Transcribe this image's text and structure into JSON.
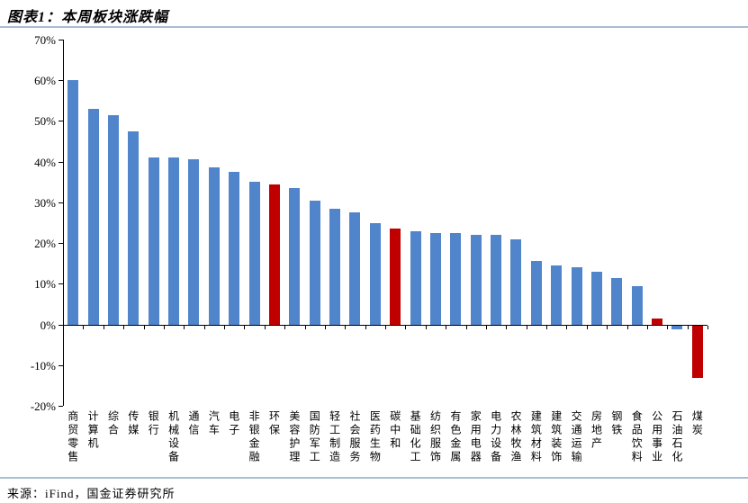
{
  "page": {
    "title": "图表1：本周板块涨跌幅",
    "source": "来源：iFind，国金证券研究所"
  },
  "chart_data": {
    "type": "bar",
    "title": "图表1：本周板块涨跌幅",
    "categories": [
      "商贸零售",
      "计算机",
      "综合",
      "传媒",
      "银行",
      "机械设备",
      "通信",
      "汽车",
      "电子",
      "非银金融",
      "环保",
      "美容护理",
      "国防军工",
      "轻工制造",
      "社会服务",
      "医药生物",
      "碳中和",
      "基础化工",
      "纺织服饰",
      "有色金属",
      "家用电器",
      "电力设备",
      "农林牧渔",
      "建筑材料",
      "建筑装饰",
      "交通运输",
      "房地产",
      "钢铁",
      "食品饮料",
      "公用事业",
      "石油石化",
      "煤炭"
    ],
    "values": [
      60,
      53,
      51.5,
      47.5,
      41,
      41,
      40.5,
      38.5,
      37.5,
      35,
      34.5,
      33.5,
      30.5,
      28.5,
      27.5,
      25,
      23.5,
      23,
      22.5,
      22.5,
      22,
      22,
      21,
      15.5,
      14.5,
      14,
      13,
      11.5,
      9.5,
      1.5,
      -1,
      -13
    ],
    "highlight_indices": [
      10,
      16,
      29,
      31
    ],
    "ylim": [
      -20,
      70
    ],
    "ytick_step": 10,
    "ytick_labels": [
      "70%",
      "60%",
      "50%",
      "40%",
      "30%",
      "20%",
      "10%",
      "0%",
      "-10%",
      "-20%"
    ],
    "xlabel": "",
    "ylabel": "",
    "legend": "none",
    "grid": false,
    "colors": {
      "bar": "#5185CB",
      "highlight": "#C00000",
      "axis": "#000000",
      "divider": "#A9BDD4"
    }
  }
}
